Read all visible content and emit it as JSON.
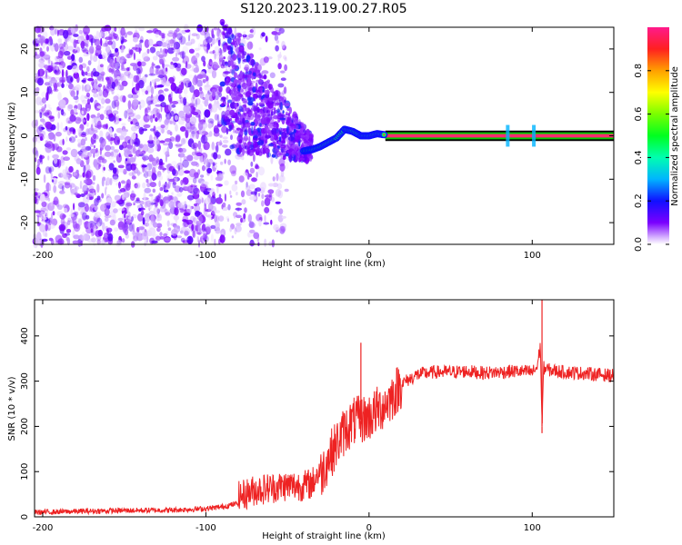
{
  "title": "S120.2023.119.00.27.R05",
  "colors": {
    "snr_line": "#ee2222",
    "spectral_low": "#7a00ff",
    "tone_band_outer": "#00c800",
    "tone_band_mid": "#ff2a6e"
  },
  "chart_data": [
    {
      "type": "heatmap",
      "name": "spectrogram",
      "xlabel": "Height of straight line (km)",
      "ylabel": "Frequency (Hz)",
      "xlim": [
        -205,
        150
      ],
      "ylim": [
        -25,
        25
      ],
      "xticks": [
        -200,
        -100,
        0,
        100
      ],
      "yticks": [
        -20,
        -10,
        0,
        10,
        20
      ],
      "grid": false,
      "colorbar": {
        "label": "Normalized spectral amplitude",
        "range": [
          0,
          1
        ],
        "ticks": [
          "0.0",
          "0.2",
          "0.4",
          "0.6",
          "0.8"
        ],
        "colormap": "rainbow"
      },
      "tone_track": [
        {
          "x": -40,
          "y": -3.5
        },
        {
          "x": -35,
          "y": -3.2
        },
        {
          "x": -30,
          "y": -2.5
        },
        {
          "x": -25,
          "y": -1.5
        },
        {
          "x": -20,
          "y": -0.5
        },
        {
          "x": -15,
          "y": 1.5
        },
        {
          "x": -10,
          "y": 1.0
        },
        {
          "x": -5,
          "y": 0.0
        },
        {
          "x": 0,
          "y": 0.0
        },
        {
          "x": 5,
          "y": 0.5
        },
        {
          "x": 10,
          "y": 0.2
        },
        {
          "x": 150,
          "y": 0.0
        }
      ]
    },
    {
      "type": "line",
      "name": "snr",
      "xlabel": "Height of straight line (km)",
      "ylabel": "SNR (10 * v/v)",
      "xlim": [
        -205,
        150
      ],
      "ylim": [
        0,
        480
      ],
      "xticks": [
        -200,
        -100,
        0,
        100
      ],
      "yticks": [
        0,
        100,
        200,
        300,
        400
      ],
      "grid": false,
      "series": [
        {
          "x": [
            -205,
            -180,
            -150,
            -120,
            -100,
            -90,
            -80,
            -70,
            -60,
            -50,
            -40,
            -35,
            -30,
            -25,
            -20,
            -15,
            -10,
            -5,
            0,
            5,
            10,
            15,
            20,
            25,
            30,
            40,
            50,
            60,
            70,
            80,
            90,
            100,
            103,
            105,
            106,
            107,
            110,
            120,
            130,
            140,
            150
          ],
          "values": [
            10,
            12,
            14,
            15,
            18,
            22,
            30,
            45,
            50,
            55,
            55,
            60,
            90,
            130,
            160,
            190,
            210,
            215,
            220,
            235,
            250,
            270,
            295,
            305,
            315,
            320,
            320,
            322,
            318,
            320,
            322,
            320,
            330,
            380,
            200,
            330,
            325,
            320,
            318,
            315,
            312
          ]
        }
      ],
      "spikes": [
        {
          "x": -5,
          "y": 385
        },
        {
          "x": 106,
          "y": 480
        },
        {
          "x": 106,
          "y": 185
        }
      ]
    }
  ]
}
